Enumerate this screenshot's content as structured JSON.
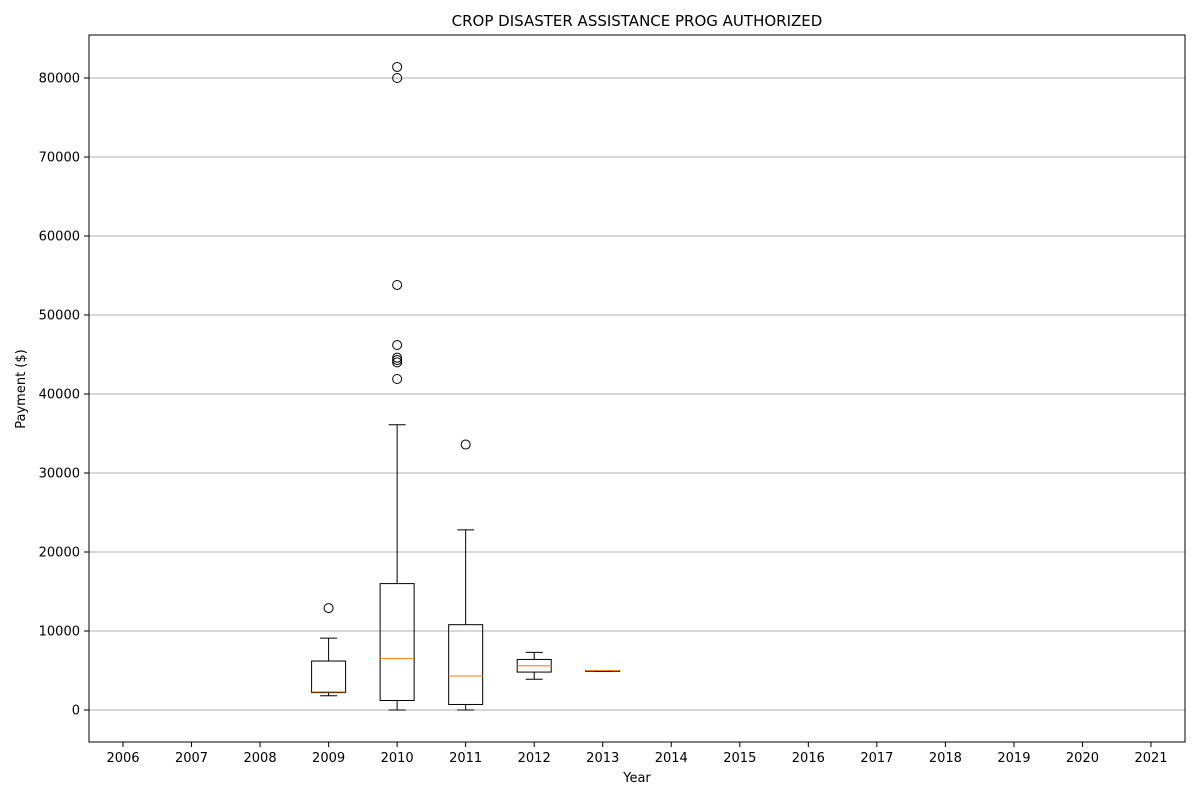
{
  "chart_data": {
    "type": "box",
    "title": "CROP DISASTER ASSISTANCE PROG AUTHORIZED",
    "xlabel": "Year",
    "ylabel": "Payment ($)",
    "categories": [
      "2006",
      "2007",
      "2008",
      "2009",
      "2010",
      "2011",
      "2012",
      "2013",
      "2014",
      "2015",
      "2016",
      "2017",
      "2018",
      "2019",
      "2020",
      "2021"
    ],
    "ylim": [
      -4000,
      85500
    ],
    "yticks": [
      0,
      10000,
      20000,
      30000,
      40000,
      50000,
      60000,
      70000,
      80000
    ],
    "grid": "y",
    "boxes": [
      {
        "category": "2009",
        "whisker_low": 1800,
        "q1": 2200,
        "median": 2300,
        "q3": 6200,
        "whisker_high": 9100,
        "outliers": [
          12900
        ]
      },
      {
        "category": "2010",
        "whisker_low": 0,
        "q1": 1200,
        "median": 6500,
        "q3": 16000,
        "whisker_high": 36100,
        "outliers": [
          41900,
          44000,
          44300,
          44600,
          46200,
          53800,
          80000,
          81400
        ]
      },
      {
        "category": "2011",
        "whisker_low": 0,
        "q1": 700,
        "median": 4300,
        "q3": 10800,
        "whisker_high": 22800,
        "outliers": [
          33600
        ]
      },
      {
        "category": "2012",
        "whisker_low": 3900,
        "q1": 4800,
        "median": 5600,
        "q3": 6400,
        "whisker_high": 7300,
        "outliers": []
      },
      {
        "category": "2013",
        "whisker_low": 4900,
        "q1": 4900,
        "median": 5000,
        "q3": 5000,
        "whisker_high": 5000,
        "outliers": []
      }
    ],
    "colors": {
      "box": "#000000",
      "median": "#ff7f0e",
      "grid": "#b0b0b0"
    }
  }
}
